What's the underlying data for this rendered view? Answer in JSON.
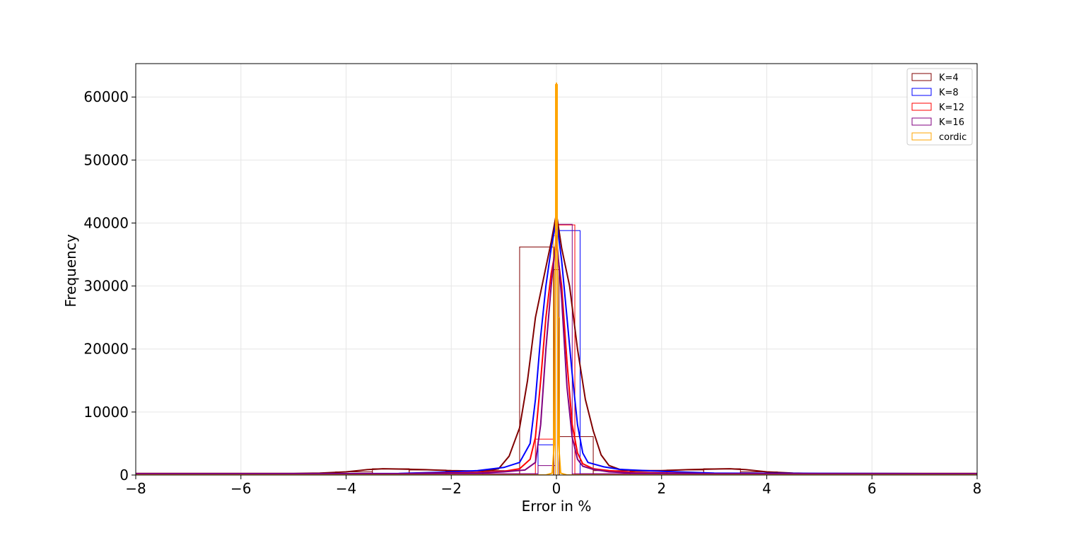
{
  "chart_data": {
    "type": "histogram+kde",
    "xlabel": "Error in %",
    "ylabel": "Frequency",
    "xlim": [
      -8,
      8
    ],
    "ylim": [
      0,
      65300
    ],
    "xticks": [
      -8,
      -6,
      -4,
      -2,
      0,
      2,
      4,
      6,
      8
    ],
    "xtick_labels": [
      "−8",
      "−6",
      "−4",
      "−2",
      "0",
      "2",
      "4",
      "6",
      "8"
    ],
    "yticks": [
      0,
      10000,
      20000,
      30000,
      40000,
      50000,
      60000
    ],
    "ytick_labels": [
      "0",
      "10000",
      "20000",
      "30000",
      "40000",
      "50000",
      "60000"
    ],
    "grid": true,
    "legend_position": "top-right",
    "series": [
      {
        "name": "K=4",
        "color": "#800000",
        "bins": [
          {
            "x0": -8.0,
            "x1": -4.2,
            "count": 250
          },
          {
            "x0": -4.2,
            "x1": -3.5,
            "count": 500
          },
          {
            "x0": -3.5,
            "x1": -2.8,
            "count": 1000
          },
          {
            "x0": -2.8,
            "x1": -2.1,
            "count": 800
          },
          {
            "x0": -2.1,
            "x1": -1.4,
            "count": 600
          },
          {
            "x0": -1.4,
            "x1": -0.7,
            "count": 700
          },
          {
            "x0": -0.7,
            "x1": -0.05,
            "count": 36200
          },
          {
            "x0": -0.05,
            "x1": 0.05,
            "count": 32600
          },
          {
            "x0": 0.05,
            "x1": 0.7,
            "count": 6100
          },
          {
            "x0": 0.7,
            "x1": 1.4,
            "count": 700
          },
          {
            "x0": 1.4,
            "x1": 2.1,
            "count": 600
          },
          {
            "x0": 2.1,
            "x1": 2.8,
            "count": 800
          },
          {
            "x0": 2.8,
            "x1": 3.5,
            "count": 1000
          },
          {
            "x0": 3.5,
            "x1": 4.2,
            "count": 500
          },
          {
            "x0": 4.2,
            "x1": 8.0,
            "count": 250
          }
        ],
        "kde": [
          [
            -8,
            250
          ],
          [
            -5,
            250
          ],
          [
            -4.5,
            300
          ],
          [
            -4,
            500
          ],
          [
            -3.6,
            850
          ],
          [
            -3.3,
            1000
          ],
          [
            -3,
            950
          ],
          [
            -2.5,
            850
          ],
          [
            -2,
            700
          ],
          [
            -1.6,
            650
          ],
          [
            -1.3,
            700
          ],
          [
            -1.1,
            1000
          ],
          [
            -0.9,
            3000
          ],
          [
            -0.7,
            7500
          ],
          [
            -0.55,
            15000
          ],
          [
            -0.4,
            25000
          ],
          [
            -0.25,
            31000
          ],
          [
            -0.1,
            37000
          ],
          [
            0,
            41500
          ],
          [
            0.1,
            36000
          ],
          [
            0.25,
            30000
          ],
          [
            0.4,
            20000
          ],
          [
            0.55,
            12000
          ],
          [
            0.7,
            7000
          ],
          [
            0.85,
            3200
          ],
          [
            1,
            1500
          ],
          [
            1.2,
            900
          ],
          [
            1.5,
            700
          ],
          [
            2,
            700
          ],
          [
            2.5,
            850
          ],
          [
            3,
            950
          ],
          [
            3.3,
            1000
          ],
          [
            3.6,
            850
          ],
          [
            4,
            500
          ],
          [
            4.5,
            300
          ],
          [
            5,
            250
          ],
          [
            8,
            250
          ]
        ]
      },
      {
        "name": "K=8",
        "color": "#0000ff",
        "bins": [
          {
            "x0": -8.0,
            "x1": -0.35,
            "count": 200
          },
          {
            "x0": -0.35,
            "x1": -0.02,
            "count": 4800
          },
          {
            "x0": -0.02,
            "x1": 0.02,
            "count": 37000
          },
          {
            "x0": 0.02,
            "x1": 0.45,
            "count": 38800
          },
          {
            "x0": 0.45,
            "x1": 8.0,
            "count": 200
          }
        ],
        "kde": [
          [
            -8,
            200
          ],
          [
            -3,
            250
          ],
          [
            -2,
            500
          ],
          [
            -1.5,
            700
          ],
          [
            -1,
            1200
          ],
          [
            -0.7,
            2000
          ],
          [
            -0.5,
            5000
          ],
          [
            -0.4,
            12000
          ],
          [
            -0.3,
            22000
          ],
          [
            -0.2,
            30000
          ],
          [
            -0.1,
            36000
          ],
          [
            0,
            40500
          ],
          [
            0.1,
            34000
          ],
          [
            0.2,
            25000
          ],
          [
            0.3,
            16000
          ],
          [
            0.4,
            8000
          ],
          [
            0.5,
            3500
          ],
          [
            0.6,
            2000
          ],
          [
            0.9,
            1300
          ],
          [
            1.2,
            900
          ],
          [
            2,
            600
          ],
          [
            3,
            300
          ],
          [
            8,
            200
          ]
        ]
      },
      {
        "name": "K=12",
        "color": "#ff0000",
        "bins": [
          {
            "x0": -8.0,
            "x1": -0.4,
            "count": 200
          },
          {
            "x0": -0.4,
            "x1": -0.02,
            "count": 5700
          },
          {
            "x0": -0.02,
            "x1": 0.02,
            "count": 38000
          },
          {
            "x0": 0.02,
            "x1": 0.35,
            "count": 39700
          },
          {
            "x0": 0.35,
            "x1": 8.0,
            "count": 200
          }
        ],
        "kde": [
          [
            -8,
            200
          ],
          [
            -3,
            200
          ],
          [
            -1.5,
            400
          ],
          [
            -1,
            600
          ],
          [
            -0.7,
            1000
          ],
          [
            -0.5,
            2500
          ],
          [
            -0.4,
            6000
          ],
          [
            -0.3,
            15000
          ],
          [
            -0.2,
            25000
          ],
          [
            -0.1,
            32000
          ],
          [
            0,
            36500
          ],
          [
            0.1,
            30000
          ],
          [
            0.2,
            18000
          ],
          [
            0.3,
            8000
          ],
          [
            0.4,
            3500
          ],
          [
            0.5,
            1800
          ],
          [
            0.7,
            1000
          ],
          [
            1,
            700
          ],
          [
            1.5,
            400
          ],
          [
            3,
            200
          ],
          [
            8,
            200
          ]
        ]
      },
      {
        "name": "K=16",
        "color": "#800080",
        "bins": [
          {
            "x0": -8.0,
            "x1": -0.35,
            "count": 200
          },
          {
            "x0": -0.35,
            "x1": -0.02,
            "count": 1500
          },
          {
            "x0": -0.02,
            "x1": 0.02,
            "count": 39000
          },
          {
            "x0": 0.02,
            "x1": 0.3,
            "count": 39800
          },
          {
            "x0": 0.3,
            "x1": 8.0,
            "count": 200
          }
        ],
        "kde": [
          [
            -8,
            200
          ],
          [
            -3,
            200
          ],
          [
            -1.5,
            300
          ],
          [
            -1,
            500
          ],
          [
            -0.6,
            800
          ],
          [
            -0.4,
            2000
          ],
          [
            -0.3,
            8000
          ],
          [
            -0.2,
            20000
          ],
          [
            -0.1,
            30000
          ],
          [
            0,
            38000
          ],
          [
            0.1,
            28000
          ],
          [
            0.2,
            14000
          ],
          [
            0.3,
            6000
          ],
          [
            0.4,
            2500
          ],
          [
            0.5,
            1400
          ],
          [
            0.7,
            900
          ],
          [
            1,
            500
          ],
          [
            1.5,
            300
          ],
          [
            3,
            200
          ],
          [
            8,
            200
          ]
        ]
      },
      {
        "name": "cordic",
        "color": "#ffa500",
        "bins": [
          {
            "x0": -0.06,
            "x1": -0.02,
            "count": 38000
          },
          {
            "x0": -0.02,
            "x1": 0.02,
            "count": 62000
          },
          {
            "x0": 0.02,
            "x1": 0.06,
            "count": 25000
          }
        ],
        "kde": [
          [
            -8,
            0
          ],
          [
            -0.2,
            0
          ],
          [
            -0.08,
            300
          ],
          [
            -0.04,
            5000
          ],
          [
            -0.02,
            30000
          ],
          [
            0,
            62200
          ],
          [
            0.02,
            30000
          ],
          [
            0.04,
            5000
          ],
          [
            0.08,
            300
          ],
          [
            0.2,
            0
          ],
          [
            8,
            0
          ]
        ]
      }
    ]
  }
}
